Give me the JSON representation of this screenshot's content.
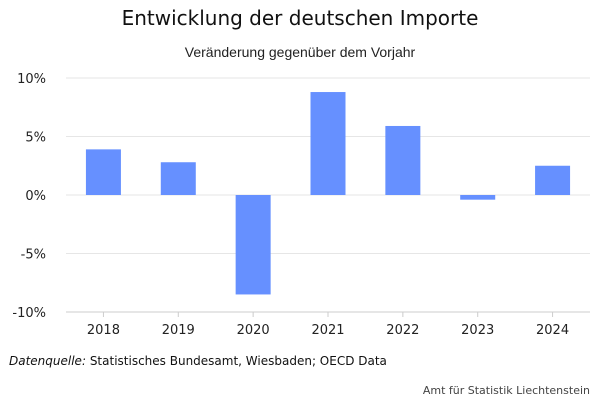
{
  "chart_data": {
    "type": "bar",
    "title": "Entwicklung der deutschen Importe",
    "subtitle": "Veränderung gegenüber dem Vorjahr",
    "categories": [
      "2018",
      "2019",
      "2020",
      "2021",
      "2022",
      "2023",
      "2024"
    ],
    "values": [
      3.9,
      2.8,
      -8.5,
      8.8,
      5.9,
      -0.4,
      2.5
    ],
    "value_unit": "%",
    "xlabel": "",
    "ylabel": "",
    "ylim": [
      -10,
      10
    ],
    "yticks": [
      10,
      5,
      0,
      -5,
      -10
    ],
    "ytick_labels": [
      "10%",
      "5%",
      "0%",
      "-5%",
      "-10%"
    ],
    "grid": true,
    "bar_color": "#6690ff",
    "grid_color": "#e6e6e6"
  },
  "footer": {
    "source_label": "Datenquelle:",
    "source_text": " Statistisches Bundesamt, Wiesbaden; OECD Data",
    "credit": "Amt für Statistik Liechtenstein"
  }
}
